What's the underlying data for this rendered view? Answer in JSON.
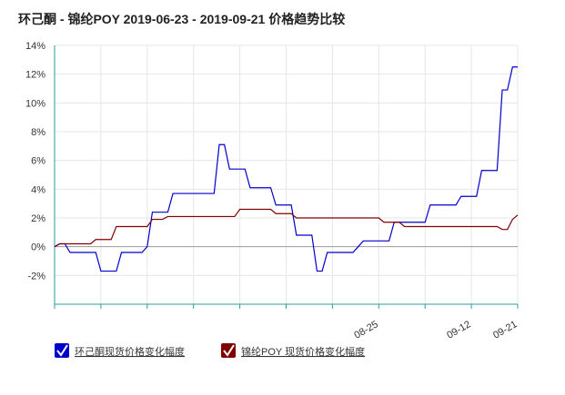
{
  "chart_data": {
    "type": "line",
    "title": "环己酮 - 锦纶POY 2019-06-23 - 2019-09-21 价格趋势比较",
    "xlim": [
      "06-23",
      "09-21"
    ],
    "xticks": [
      {
        "value": "06-23",
        "label": null
      },
      {
        "value": "07-02",
        "label": null
      },
      {
        "value": "07-11",
        "label": null
      },
      {
        "value": "07-20",
        "label": null
      },
      {
        "value": "07-29",
        "label": null
      },
      {
        "value": "08-07",
        "label": null
      },
      {
        "value": "08-16",
        "label": null
      },
      "08-25",
      {
        "value": "09-03",
        "label": null
      },
      "09-12",
      "09-21"
    ],
    "ylim": [
      -4,
      14
    ],
    "yticks": [
      {
        "value": -2,
        "label": "-2%"
      },
      {
        "value": 0,
        "label": "0%"
      },
      {
        "value": 2,
        "label": "2%"
      },
      {
        "value": 4,
        "label": "4%"
      },
      {
        "value": 6,
        "label": "6%"
      },
      {
        "value": 8,
        "label": "8%"
      },
      {
        "value": 10,
        "label": "10%"
      },
      {
        "value": 12,
        "label": "12%"
      },
      {
        "value": 14,
        "label": "14%"
      }
    ],
    "grid": true,
    "series": [
      {
        "name": "环己酮现货价格变化幅度",
        "color": "#0000cc",
        "x": [
          "06-23",
          "06-24",
          "06-25",
          "06-26",
          "07-01",
          "07-02",
          "07-05",
          "07-06",
          "07-10",
          "07-11",
          "07-12",
          "07-15",
          "07-16",
          "07-24",
          "07-25",
          "07-26",
          "07-27",
          "07-30",
          "07-31",
          "08-04",
          "08-05",
          "08-08",
          "08-09",
          "08-12",
          "08-13",
          "08-14",
          "08-15",
          "08-20",
          "08-21",
          "08-22",
          "08-27",
          "08-28",
          "09-03",
          "09-04",
          "09-09",
          "09-10",
          "09-13",
          "09-14",
          "09-17",
          "09-18",
          "09-19",
          "09-20",
          "09-21"
        ],
        "values": [
          0,
          0.2,
          0.2,
          -0.4,
          -0.4,
          -1.7,
          -1.7,
          -0.4,
          -0.4,
          0,
          2.4,
          2.4,
          3.7,
          3.7,
          7.1,
          7.1,
          5.4,
          5.4,
          4.1,
          4.1,
          2.9,
          2.9,
          0.8,
          0.8,
          -1.7,
          -1.7,
          -0.4,
          -0.4,
          0,
          0.4,
          0.4,
          1.7,
          1.7,
          2.9,
          2.9,
          3.5,
          3.5,
          5.3,
          5.3,
          10.9,
          10.9,
          12.5,
          12.5
        ]
      },
      {
        "name": "锦纶POY 现货价格变化幅度",
        "color": "#800000",
        "x": [
          "06-23",
          "06-24",
          "06-30",
          "07-01",
          "07-04",
          "07-05",
          "07-11",
          "07-12",
          "07-14",
          "07-15",
          "07-28",
          "07-29",
          "08-04",
          "08-05",
          "08-08",
          "08-09",
          "08-25",
          "08-26",
          "08-29",
          "08-30",
          "09-17",
          "09-18",
          "09-19",
          "09-20",
          "09-21"
        ],
        "values": [
          0,
          0.2,
          0.2,
          0.5,
          0.5,
          1.4,
          1.4,
          1.9,
          1.9,
          2.1,
          2.1,
          2.6,
          2.6,
          2.3,
          2.3,
          2.0,
          2.0,
          1.7,
          1.7,
          1.4,
          1.4,
          1.2,
          1.2,
          1.9,
          2.2
        ]
      }
    ]
  }
}
